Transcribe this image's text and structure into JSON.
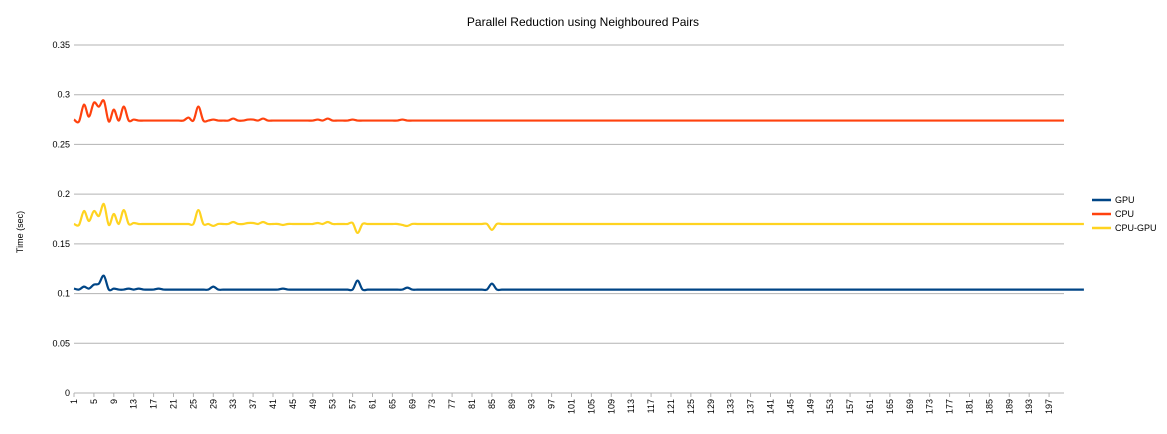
{
  "chart_data": {
    "type": "line",
    "title": "Parallel Reduction using Neighboured Pairs",
    "xlabel": "",
    "ylabel": "Time (sec)",
    "ylim": [
      0,
      0.35
    ],
    "yticks": [
      "0",
      "0.05",
      "0.1",
      "0.15",
      "0.2",
      "0.25",
      "0.3",
      "0.35"
    ],
    "ytick_values": [
      0,
      0.05,
      0.1,
      0.15,
      0.2,
      0.25,
      0.3,
      0.35
    ],
    "x_range": [
      1,
      200
    ],
    "xtick_labels": [
      "1",
      "5",
      "9",
      "13",
      "17",
      "21",
      "25",
      "29",
      "33",
      "37",
      "41",
      "45",
      "49",
      "53",
      "57",
      "61",
      "65",
      "69",
      "73",
      "77",
      "81",
      "85",
      "89",
      "93",
      "97",
      "101",
      "105",
      "109",
      "113",
      "117",
      "121",
      "125",
      "129",
      "133",
      "137",
      "141",
      "145",
      "149",
      "153",
      "157",
      "161",
      "165",
      "169",
      "173",
      "177",
      "181",
      "185",
      "189",
      "193",
      "197"
    ],
    "grid": "horizontal",
    "legend_position": "right",
    "series": [
      {
        "name": "GPU",
        "color": "#004586",
        "values": [
          0.105,
          0.104,
          0.107,
          0.105,
          0.109,
          0.11,
          0.118,
          0.104,
          0.105,
          0.104,
          0.104,
          0.105,
          0.104,
          0.105,
          0.104,
          0.104,
          0.104,
          0.105,
          0.104,
          0.104,
          0.104,
          0.104,
          0.104,
          0.104,
          0.104,
          0.104,
          0.104,
          0.104,
          0.107,
          0.104,
          0.104,
          0.104,
          0.104,
          0.104,
          0.104,
          0.104,
          0.104,
          0.104,
          0.104,
          0.104,
          0.104,
          0.104,
          0.105,
          0.104,
          0.104,
          0.104,
          0.104,
          0.104,
          0.104,
          0.104,
          0.104,
          0.104,
          0.104,
          0.104,
          0.104,
          0.104,
          0.104,
          0.113,
          0.104,
          0.104,
          0.104,
          0.104,
          0.104,
          0.104,
          0.104,
          0.104,
          0.104,
          0.106,
          0.104,
          0.104,
          0.104,
          0.104,
          0.104,
          0.104,
          0.104,
          0.104,
          0.104,
          0.104,
          0.104,
          0.104,
          0.104,
          0.104,
          0.104,
          0.104,
          0.11,
          0.104,
          0.104,
          0.104,
          0.104,
          0.104,
          0.104,
          0.104,
          0.104,
          0.104,
          0.104,
          0.104,
          0.104,
          0.104,
          0.104,
          0.104,
          0.104,
          0.104,
          0.104,
          0.104,
          0.104,
          0.104,
          0.104,
          0.104,
          0.104,
          0.104,
          0.104,
          0.104,
          0.104,
          0.104,
          0.104,
          0.104,
          0.104,
          0.104,
          0.104,
          0.104,
          0.104,
          0.104,
          0.104,
          0.104,
          0.104,
          0.104,
          0.104,
          0.104,
          0.104,
          0.104,
          0.104,
          0.104,
          0.104,
          0.104,
          0.104,
          0.104,
          0.104,
          0.104,
          0.104,
          0.104,
          0.104,
          0.104,
          0.104,
          0.104,
          0.104,
          0.104,
          0.104,
          0.104,
          0.104,
          0.104,
          0.104,
          0.104,
          0.104,
          0.104,
          0.104,
          0.104,
          0.104,
          0.104,
          0.104,
          0.104,
          0.104,
          0.104,
          0.104,
          0.104,
          0.104,
          0.104,
          0.104,
          0.104,
          0.104,
          0.104,
          0.104,
          0.104,
          0.104,
          0.104,
          0.104,
          0.104,
          0.104,
          0.104,
          0.104,
          0.104,
          0.104,
          0.104,
          0.104,
          0.104,
          0.104,
          0.104,
          0.104,
          0.104,
          0.104,
          0.104,
          0.104,
          0.104,
          0.104,
          0.104,
          0.104,
          0.104,
          0.104,
          0.104,
          0.104,
          0.104,
          0.104,
          0.104,
          0.104,
          0.104
        ]
      },
      {
        "name": "CPU",
        "color": "#ff420e",
        "values": [
          0.275,
          0.273,
          0.29,
          0.278,
          0.292,
          0.288,
          0.294,
          0.273,
          0.285,
          0.274,
          0.288,
          0.274,
          0.275,
          0.274,
          0.274,
          0.274,
          0.274,
          0.274,
          0.274,
          0.274,
          0.274,
          0.274,
          0.274,
          0.277,
          0.274,
          0.288,
          0.274,
          0.274,
          0.275,
          0.274,
          0.274,
          0.274,
          0.276,
          0.274,
          0.274,
          0.275,
          0.275,
          0.274,
          0.276,
          0.274,
          0.274,
          0.274,
          0.274,
          0.274,
          0.274,
          0.274,
          0.274,
          0.274,
          0.274,
          0.275,
          0.274,
          0.276,
          0.274,
          0.274,
          0.274,
          0.274,
          0.275,
          0.274,
          0.274,
          0.274,
          0.274,
          0.274,
          0.274,
          0.274,
          0.274,
          0.274,
          0.275,
          0.274,
          0.274,
          0.274,
          0.274,
          0.274,
          0.274,
          0.274,
          0.274,
          0.274,
          0.274,
          0.274,
          0.274,
          0.274,
          0.274,
          0.274,
          0.274,
          0.274,
          0.274,
          0.274,
          0.274,
          0.274,
          0.274,
          0.274,
          0.274,
          0.274,
          0.274,
          0.274,
          0.274,
          0.274,
          0.274,
          0.274,
          0.274,
          0.274,
          0.274,
          0.274,
          0.274,
          0.274,
          0.274,
          0.274,
          0.274,
          0.274,
          0.274,
          0.274,
          0.274,
          0.274,
          0.274,
          0.274,
          0.274,
          0.274,
          0.274,
          0.274,
          0.274,
          0.274,
          0.274,
          0.274,
          0.274,
          0.274,
          0.274,
          0.274,
          0.274,
          0.274,
          0.274,
          0.274,
          0.274,
          0.274,
          0.274,
          0.274,
          0.274,
          0.274,
          0.274,
          0.274,
          0.274,
          0.274,
          0.274,
          0.274,
          0.274,
          0.274,
          0.274,
          0.274,
          0.274,
          0.274,
          0.274,
          0.274,
          0.274,
          0.274,
          0.274,
          0.274,
          0.274,
          0.274,
          0.274,
          0.274,
          0.274,
          0.274,
          0.274,
          0.274,
          0.274,
          0.274,
          0.274,
          0.274,
          0.274,
          0.274,
          0.274,
          0.274,
          0.274,
          0.274,
          0.274,
          0.274,
          0.274,
          0.274,
          0.274,
          0.274,
          0.274,
          0.274,
          0.274,
          0.274,
          0.274,
          0.274,
          0.274,
          0.274,
          0.274,
          0.274,
          0.274,
          0.274,
          0.274,
          0.274,
          0.274,
          0.274,
          0.274,
          0.274,
          0.274,
          0.274,
          0.274,
          0.274
        ]
      },
      {
        "name": "CPU-GPU",
        "color": "#ffd320",
        "values": [
          0.17,
          0.169,
          0.183,
          0.173,
          0.183,
          0.178,
          0.19,
          0.169,
          0.18,
          0.17,
          0.184,
          0.17,
          0.171,
          0.17,
          0.17,
          0.17,
          0.17,
          0.17,
          0.17,
          0.17,
          0.17,
          0.17,
          0.17,
          0.17,
          0.17,
          0.184,
          0.17,
          0.17,
          0.168,
          0.17,
          0.17,
          0.17,
          0.172,
          0.17,
          0.17,
          0.171,
          0.171,
          0.17,
          0.172,
          0.17,
          0.17,
          0.17,
          0.169,
          0.17,
          0.17,
          0.17,
          0.17,
          0.17,
          0.17,
          0.171,
          0.17,
          0.172,
          0.17,
          0.17,
          0.17,
          0.17,
          0.171,
          0.161,
          0.17,
          0.17,
          0.17,
          0.17,
          0.17,
          0.17,
          0.17,
          0.17,
          0.169,
          0.168,
          0.17,
          0.17,
          0.17,
          0.17,
          0.17,
          0.17,
          0.17,
          0.17,
          0.17,
          0.17,
          0.17,
          0.17,
          0.17,
          0.17,
          0.17,
          0.17,
          0.164,
          0.17,
          0.17,
          0.17,
          0.17,
          0.17,
          0.17,
          0.17,
          0.17,
          0.17,
          0.17,
          0.17,
          0.17,
          0.17,
          0.17,
          0.17,
          0.17,
          0.17,
          0.17,
          0.17,
          0.17,
          0.17,
          0.17,
          0.17,
          0.17,
          0.17,
          0.17,
          0.17,
          0.17,
          0.17,
          0.17,
          0.17,
          0.17,
          0.17,
          0.17,
          0.17,
          0.17,
          0.17,
          0.17,
          0.17,
          0.17,
          0.17,
          0.17,
          0.17,
          0.17,
          0.17,
          0.17,
          0.17,
          0.17,
          0.17,
          0.17,
          0.17,
          0.17,
          0.17,
          0.17,
          0.17,
          0.17,
          0.17,
          0.17,
          0.17,
          0.17,
          0.17,
          0.17,
          0.17,
          0.17,
          0.17,
          0.17,
          0.17,
          0.17,
          0.17,
          0.17,
          0.17,
          0.17,
          0.17,
          0.17,
          0.17,
          0.17,
          0.17,
          0.17,
          0.17,
          0.17,
          0.17,
          0.17,
          0.17,
          0.17,
          0.17,
          0.17,
          0.17,
          0.17,
          0.17,
          0.17,
          0.17,
          0.17,
          0.17,
          0.17,
          0.17,
          0.17,
          0.17,
          0.17,
          0.17,
          0.17,
          0.17,
          0.17,
          0.17,
          0.17,
          0.17,
          0.17,
          0.17,
          0.17,
          0.17,
          0.17,
          0.17,
          0.17,
          0.17,
          0.17,
          0.17,
          0.17,
          0.17,
          0.17,
          0.17
        ]
      }
    ]
  }
}
